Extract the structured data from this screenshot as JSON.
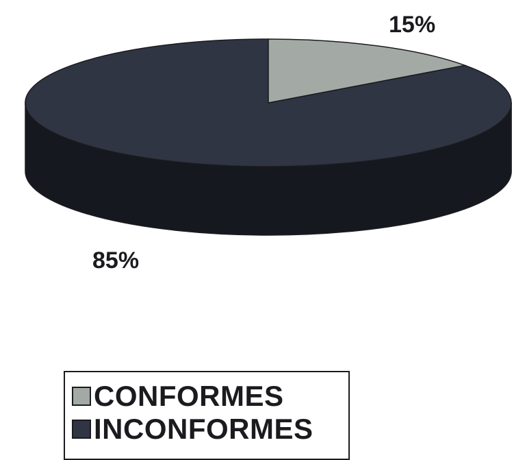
{
  "chart_data": {
    "type": "pie",
    "style": "3d",
    "slices": [
      {
        "label": "CONFORMES",
        "value": 15,
        "data_label": "15%",
        "color": "#a3aaa6"
      },
      {
        "label": "INCONFORMES",
        "value": 85,
        "data_label": "85%",
        "color": "#2f3542"
      }
    ],
    "legend_position": "bottom-left"
  },
  "colors": {
    "side_dark": "#15181f",
    "outline": "#1b1b1f"
  }
}
